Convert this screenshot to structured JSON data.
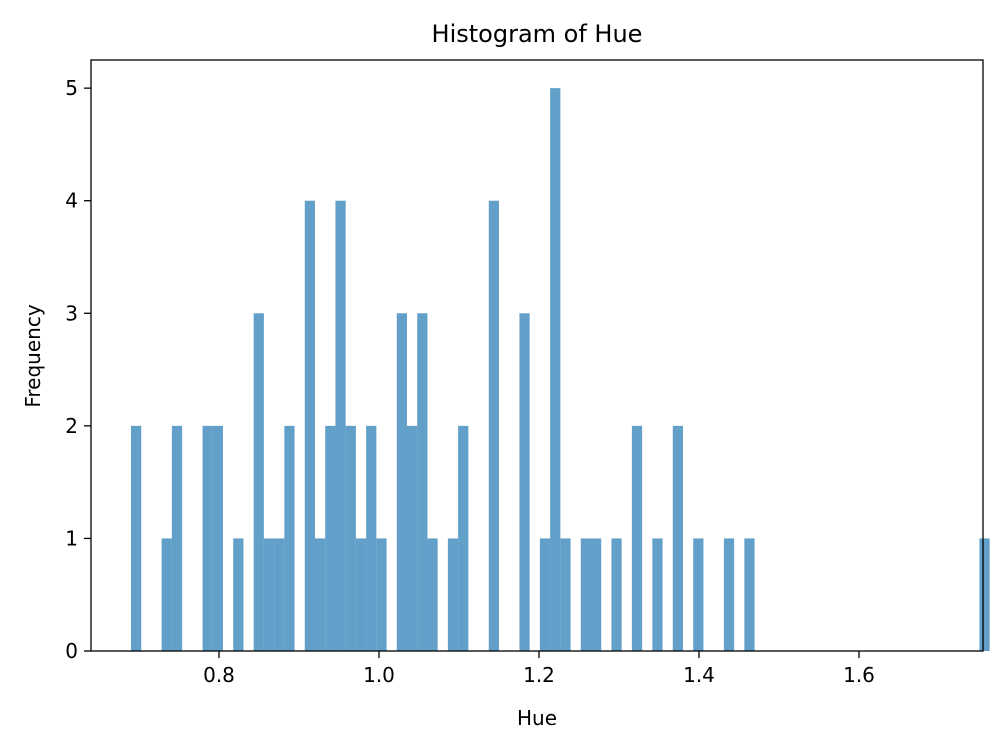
{
  "chart_data": {
    "type": "bar",
    "title": "Histogram of Hue",
    "xlabel": "Hue",
    "ylabel": "Frequency",
    "xlim": [
      0.64,
      1.755
    ],
    "ylim": [
      0,
      5.25
    ],
    "xticks": [
      0.8,
      1.0,
      1.2,
      1.4,
      1.6
    ],
    "xtick_labels": [
      "0.8",
      "1.0",
      "1.2",
      "1.4",
      "1.6"
    ],
    "yticks": [
      0,
      1,
      2,
      3,
      4,
      5
    ],
    "ytick_labels": [
      "0",
      "1",
      "2",
      "3",
      "4",
      "5"
    ],
    "grid": false,
    "bar_color": "#1f77b4",
    "bar_alpha": 0.7,
    "bin_start": 0.69,
    "bin_width": 0.0127778,
    "counts": [
      2,
      0,
      0,
      1,
      2,
      0,
      0,
      2,
      2,
      0,
      1,
      0,
      3,
      1,
      1,
      2,
      0,
      4,
      1,
      2,
      4,
      2,
      1,
      2,
      1,
      0,
      3,
      2,
      3,
      1,
      0,
      1,
      2,
      0,
      0,
      4,
      0,
      0,
      3,
      0,
      1,
      5,
      1,
      0,
      1,
      1,
      0,
      1,
      0,
      2,
      0,
      1,
      0,
      2,
      0,
      1,
      0,
      0,
      1,
      0,
      1,
      0,
      0,
      0,
      0,
      0,
      0,
      0,
      0,
      0,
      0,
      0,
      0,
      0,
      0,
      0,
      0,
      0,
      0,
      0,
      0,
      0,
      0,
      1
    ]
  }
}
